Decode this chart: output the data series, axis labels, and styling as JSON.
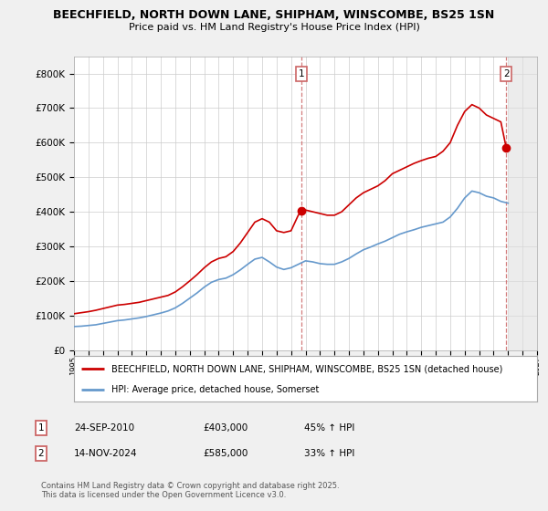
{
  "title": "BEECHFIELD, NORTH DOWN LANE, SHIPHAM, WINSCOMBE, BS25 1SN",
  "subtitle": "Price paid vs. HM Land Registry's House Price Index (HPI)",
  "background_color": "#f0f0f0",
  "plot_bg_color": "#ffffff",
  "grid_color": "#cccccc",
  "red_color": "#cc0000",
  "blue_color": "#6699cc",
  "dashed_color": "#cc6666",
  "xlim_start": 1995,
  "xlim_end": 2027,
  "ylim_min": 0,
  "ylim_max": 850000,
  "sale1_year": 2010.73,
  "sale1_price": 403000,
  "sale1_label": "1",
  "sale2_year": 2024.87,
  "sale2_price": 585000,
  "sale2_label": "2",
  "legend_line1": "BEECHFIELD, NORTH DOWN LANE, SHIPHAM, WINSCOMBE, BS25 1SN (detached house)",
  "legend_line2": "HPI: Average price, detached house, Somerset",
  "table_row1": [
    "1",
    "24-SEP-2010",
    "£403,000",
    "45% ↑ HPI"
  ],
  "table_row2": [
    "2",
    "14-NOV-2024",
    "£585,000",
    "33% ↑ HPI"
  ],
  "footnote": "Contains HM Land Registry data © Crown copyright and database right 2025.\nThis data is licensed under the Open Government Licence v3.0.",
  "red_x": [
    1995.0,
    1995.5,
    1996.0,
    1996.5,
    1997.0,
    1997.5,
    1998.0,
    1998.5,
    1999.0,
    1999.5,
    2000.0,
    2000.5,
    2001.0,
    2001.5,
    2002.0,
    2002.5,
    2003.0,
    2003.5,
    2004.0,
    2004.5,
    2005.0,
    2005.5,
    2006.0,
    2006.5,
    2007.0,
    2007.5,
    2008.0,
    2008.5,
    2009.0,
    2009.5,
    2010.0,
    2010.5,
    2010.73,
    2011.0,
    2011.5,
    2012.0,
    2012.5,
    2013.0,
    2013.5,
    2014.0,
    2014.5,
    2015.0,
    2015.5,
    2016.0,
    2016.5,
    2017.0,
    2017.5,
    2018.0,
    2018.5,
    2019.0,
    2019.5,
    2020.0,
    2020.5,
    2021.0,
    2021.5,
    2022.0,
    2022.5,
    2023.0,
    2023.5,
    2024.0,
    2024.5,
    2024.87,
    2025.0
  ],
  "red_y": [
    105000,
    108000,
    111000,
    115000,
    120000,
    125000,
    130000,
    132000,
    135000,
    138000,
    143000,
    148000,
    153000,
    158000,
    168000,
    183000,
    200000,
    218000,
    238000,
    255000,
    265000,
    270000,
    285000,
    310000,
    340000,
    370000,
    380000,
    370000,
    345000,
    340000,
    345000,
    390000,
    403000,
    405000,
    400000,
    395000,
    390000,
    390000,
    400000,
    420000,
    440000,
    455000,
    465000,
    475000,
    490000,
    510000,
    520000,
    530000,
    540000,
    548000,
    555000,
    560000,
    575000,
    600000,
    650000,
    690000,
    710000,
    700000,
    680000,
    670000,
    660000,
    585000,
    580000
  ],
  "blue_x": [
    1995.0,
    1995.5,
    1996.0,
    1996.5,
    1997.0,
    1997.5,
    1998.0,
    1998.5,
    1999.0,
    1999.5,
    2000.0,
    2000.5,
    2001.0,
    2001.5,
    2002.0,
    2002.5,
    2003.0,
    2003.5,
    2004.0,
    2004.5,
    2005.0,
    2005.5,
    2006.0,
    2006.5,
    2007.0,
    2007.5,
    2008.0,
    2008.5,
    2009.0,
    2009.5,
    2010.0,
    2010.5,
    2011.0,
    2011.5,
    2012.0,
    2012.5,
    2013.0,
    2013.5,
    2014.0,
    2014.5,
    2015.0,
    2015.5,
    2016.0,
    2016.5,
    2017.0,
    2017.5,
    2018.0,
    2018.5,
    2019.0,
    2019.5,
    2020.0,
    2020.5,
    2021.0,
    2021.5,
    2022.0,
    2022.5,
    2023.0,
    2023.5,
    2024.0,
    2024.5,
    2025.0
  ],
  "blue_y": [
    68000,
    69000,
    71000,
    73000,
    77000,
    81000,
    85000,
    87000,
    90000,
    93000,
    97000,
    102000,
    107000,
    113000,
    122000,
    135000,
    150000,
    165000,
    182000,
    196000,
    204000,
    208000,
    218000,
    232000,
    248000,
    263000,
    268000,
    255000,
    240000,
    233000,
    238000,
    248000,
    258000,
    255000,
    250000,
    248000,
    248000,
    255000,
    265000,
    278000,
    290000,
    298000,
    307000,
    315000,
    325000,
    335000,
    342000,
    348000,
    355000,
    360000,
    365000,
    370000,
    385000,
    410000,
    440000,
    460000,
    455000,
    445000,
    440000,
    430000,
    425000
  ]
}
